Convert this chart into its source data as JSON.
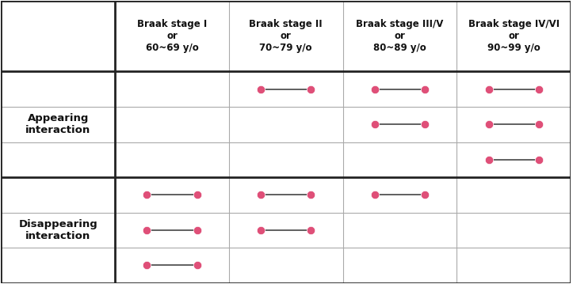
{
  "col_headers": [
    "Braak stage I\nor\n60~69 y/o",
    "Braak stage II\nor\n70~79 y/o",
    "Braak stage III/V\nor\n80~89 y/o",
    "Braak stage IV/VI\nor\n90~99 y/o"
  ],
  "row_headers": [
    "Appearing\ninteraction",
    "Disappearing\ninteraction"
  ],
  "dot_color": "#df4f78",
  "line_color": "#444444",
  "bg_color": "#ffffff",
  "border_color": "#222222",
  "appearing_dots": [
    [
      false,
      true,
      true,
      true
    ],
    [
      false,
      false,
      true,
      true
    ],
    [
      false,
      false,
      false,
      true
    ]
  ],
  "disappearing_dots": [
    [
      true,
      true,
      true,
      false
    ],
    [
      true,
      true,
      false,
      false
    ],
    [
      true,
      false,
      false,
      false
    ]
  ],
  "header_fontsize": 8.5,
  "row_header_fontsize": 9.5,
  "dot_markersize": 7.5
}
